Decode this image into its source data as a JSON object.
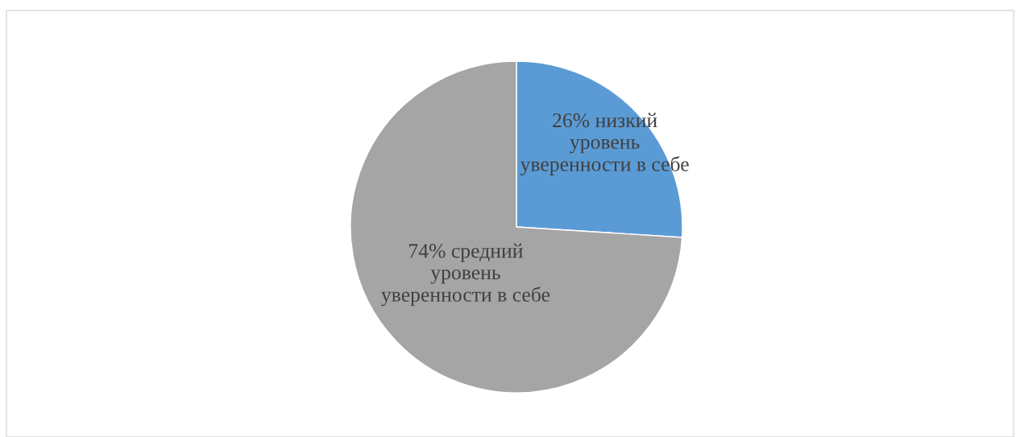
{
  "chart_data": {
    "type": "pie",
    "categories": [
      "низкий\nуровень\nуверенности в себе",
      "средний\nуровень\nуверенности в себе"
    ],
    "values": [
      26,
      74
    ],
    "colors": [
      "#5b9bd5",
      "#a5a5a5"
    ],
    "value_labels": [
      "26%",
      "74%"
    ],
    "legend": false
  }
}
